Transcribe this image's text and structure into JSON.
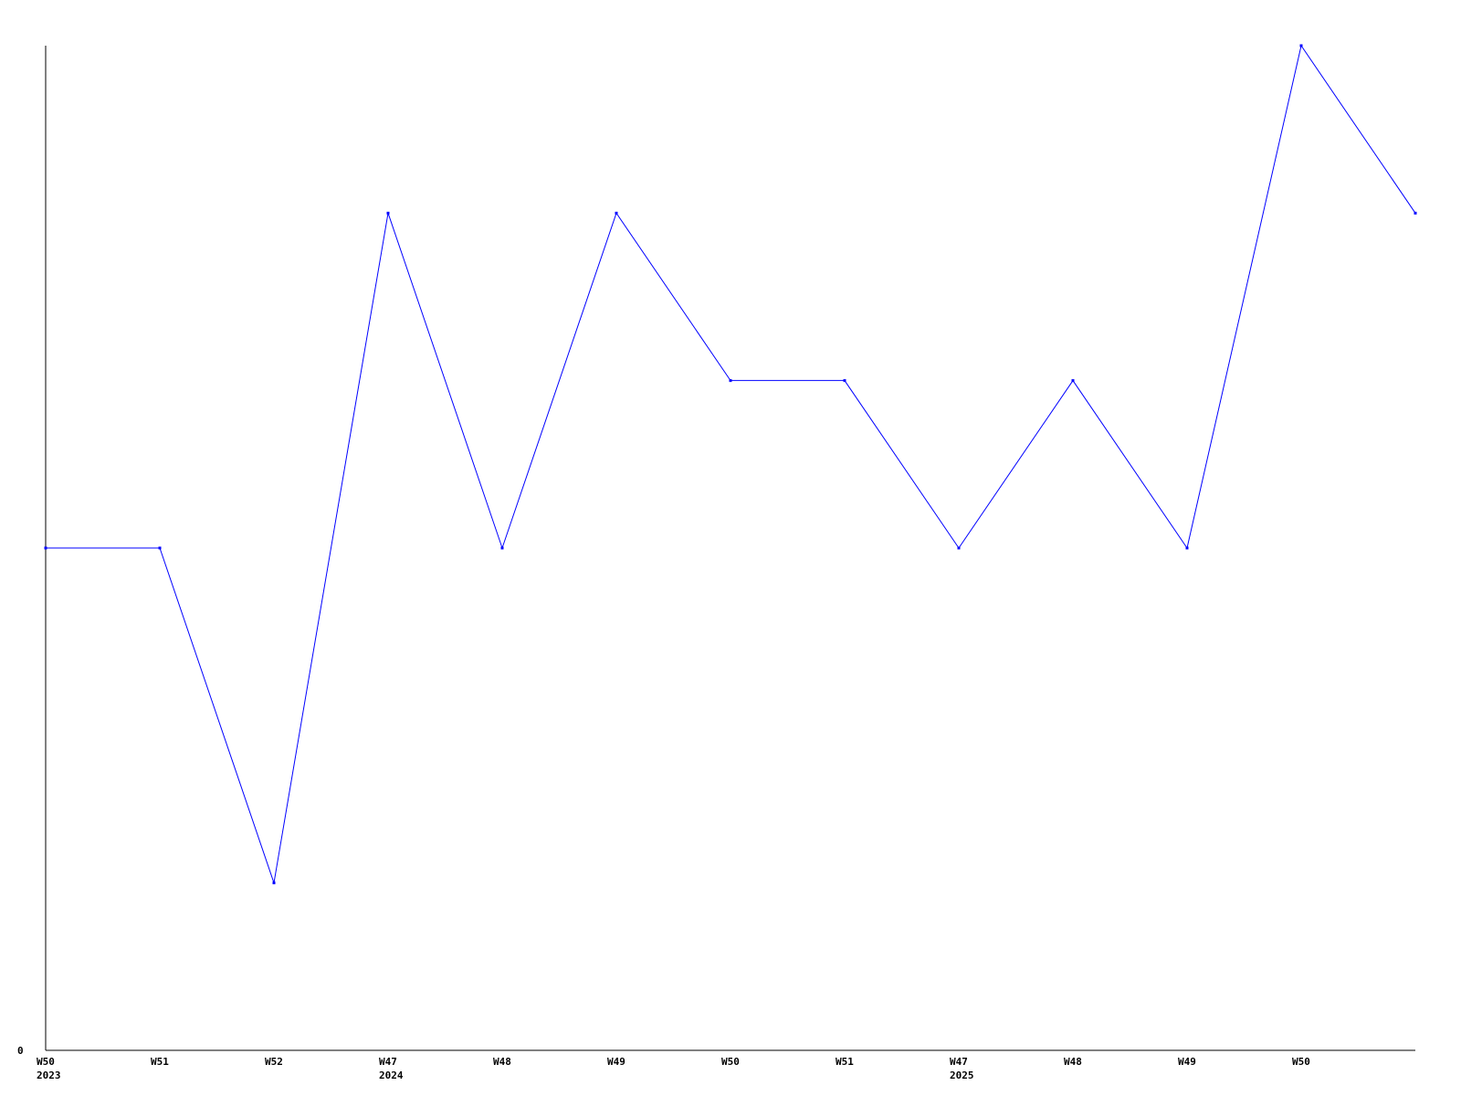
{
  "chart_data": {
    "type": "line",
    "title": "",
    "xlabel": "",
    "ylabel": "",
    "ylim": [
      0,
      6
    ],
    "y_tick_labels": [
      "0"
    ],
    "grid": false,
    "legend": "none",
    "line_color": "#0000ff",
    "x_tick_labels": [
      {
        "week": "W50",
        "year": "2023"
      },
      {
        "week": "W51",
        "year": ""
      },
      {
        "week": "W52",
        "year": ""
      },
      {
        "week": "W47",
        "year": "2024"
      },
      {
        "week": "W48",
        "year": ""
      },
      {
        "week": "W49",
        "year": ""
      },
      {
        "week": "W50",
        "year": ""
      },
      {
        "week": "W51",
        "year": ""
      },
      {
        "week": "W47",
        "year": "2025"
      },
      {
        "week": "W48",
        "year": ""
      },
      {
        "week": "W49",
        "year": ""
      },
      {
        "week": "W50",
        "year": ""
      },
      {
        "week": "",
        "year": ""
      }
    ],
    "series": [
      {
        "values": [
          3,
          3,
          1,
          5,
          3,
          5,
          4,
          4,
          3,
          4,
          3,
          6,
          5
        ]
      }
    ]
  }
}
